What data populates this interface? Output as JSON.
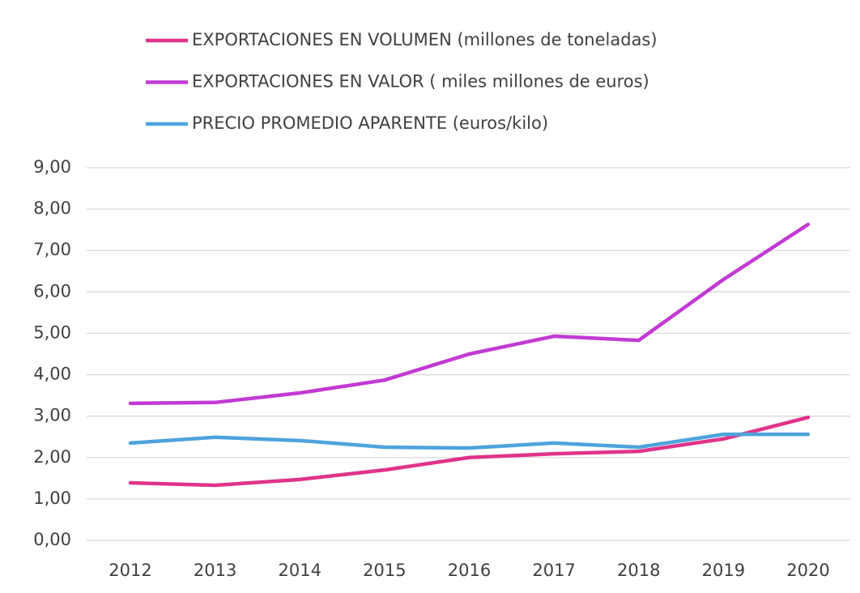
{
  "chart_data": {
    "type": "line",
    "categories": [
      "2012",
      "2013",
      "2014",
      "2015",
      "2016",
      "2017",
      "2018",
      "2019",
      "2020"
    ],
    "series": [
      {
        "name": "EXPORTACIONES EN VOLUMEN (millones de toneladas)",
        "color": "#e0338a",
        "values": [
          1.39,
          1.33,
          1.47,
          1.7,
          2.0,
          2.09,
          2.15,
          2.45,
          2.97
        ]
      },
      {
        "name": "EXPORTACIONES EN VALOR ( miles millones de euros)",
        "color": "#c23ad3",
        "values": [
          3.31,
          3.33,
          3.56,
          3.87,
          4.5,
          4.93,
          4.83,
          6.3,
          7.63
        ]
      },
      {
        "name": "PRECIO PROMEDIO APARENTE (euros/kilo)",
        "color": "#4ea3dc",
        "values": [
          2.35,
          2.49,
          2.41,
          2.25,
          2.23,
          2.35,
          2.25,
          2.56,
          2.56
        ]
      }
    ],
    "ylim": [
      0,
      9
    ],
    "yticks": [
      {
        "value": 0,
        "label": "0,00"
      },
      {
        "value": 1,
        "label": "1,00"
      },
      {
        "value": 2,
        "label": "2,00"
      },
      {
        "value": 3,
        "label": "3,00"
      },
      {
        "value": 4,
        "label": "4,00"
      },
      {
        "value": 5,
        "label": "5,00"
      },
      {
        "value": 6,
        "label": "6,00"
      },
      {
        "value": 7,
        "label": "7,00"
      },
      {
        "value": 8,
        "label": "8,00"
      },
      {
        "value": 9,
        "label": "9,00"
      }
    ],
    "grid": true,
    "legend": "top"
  }
}
